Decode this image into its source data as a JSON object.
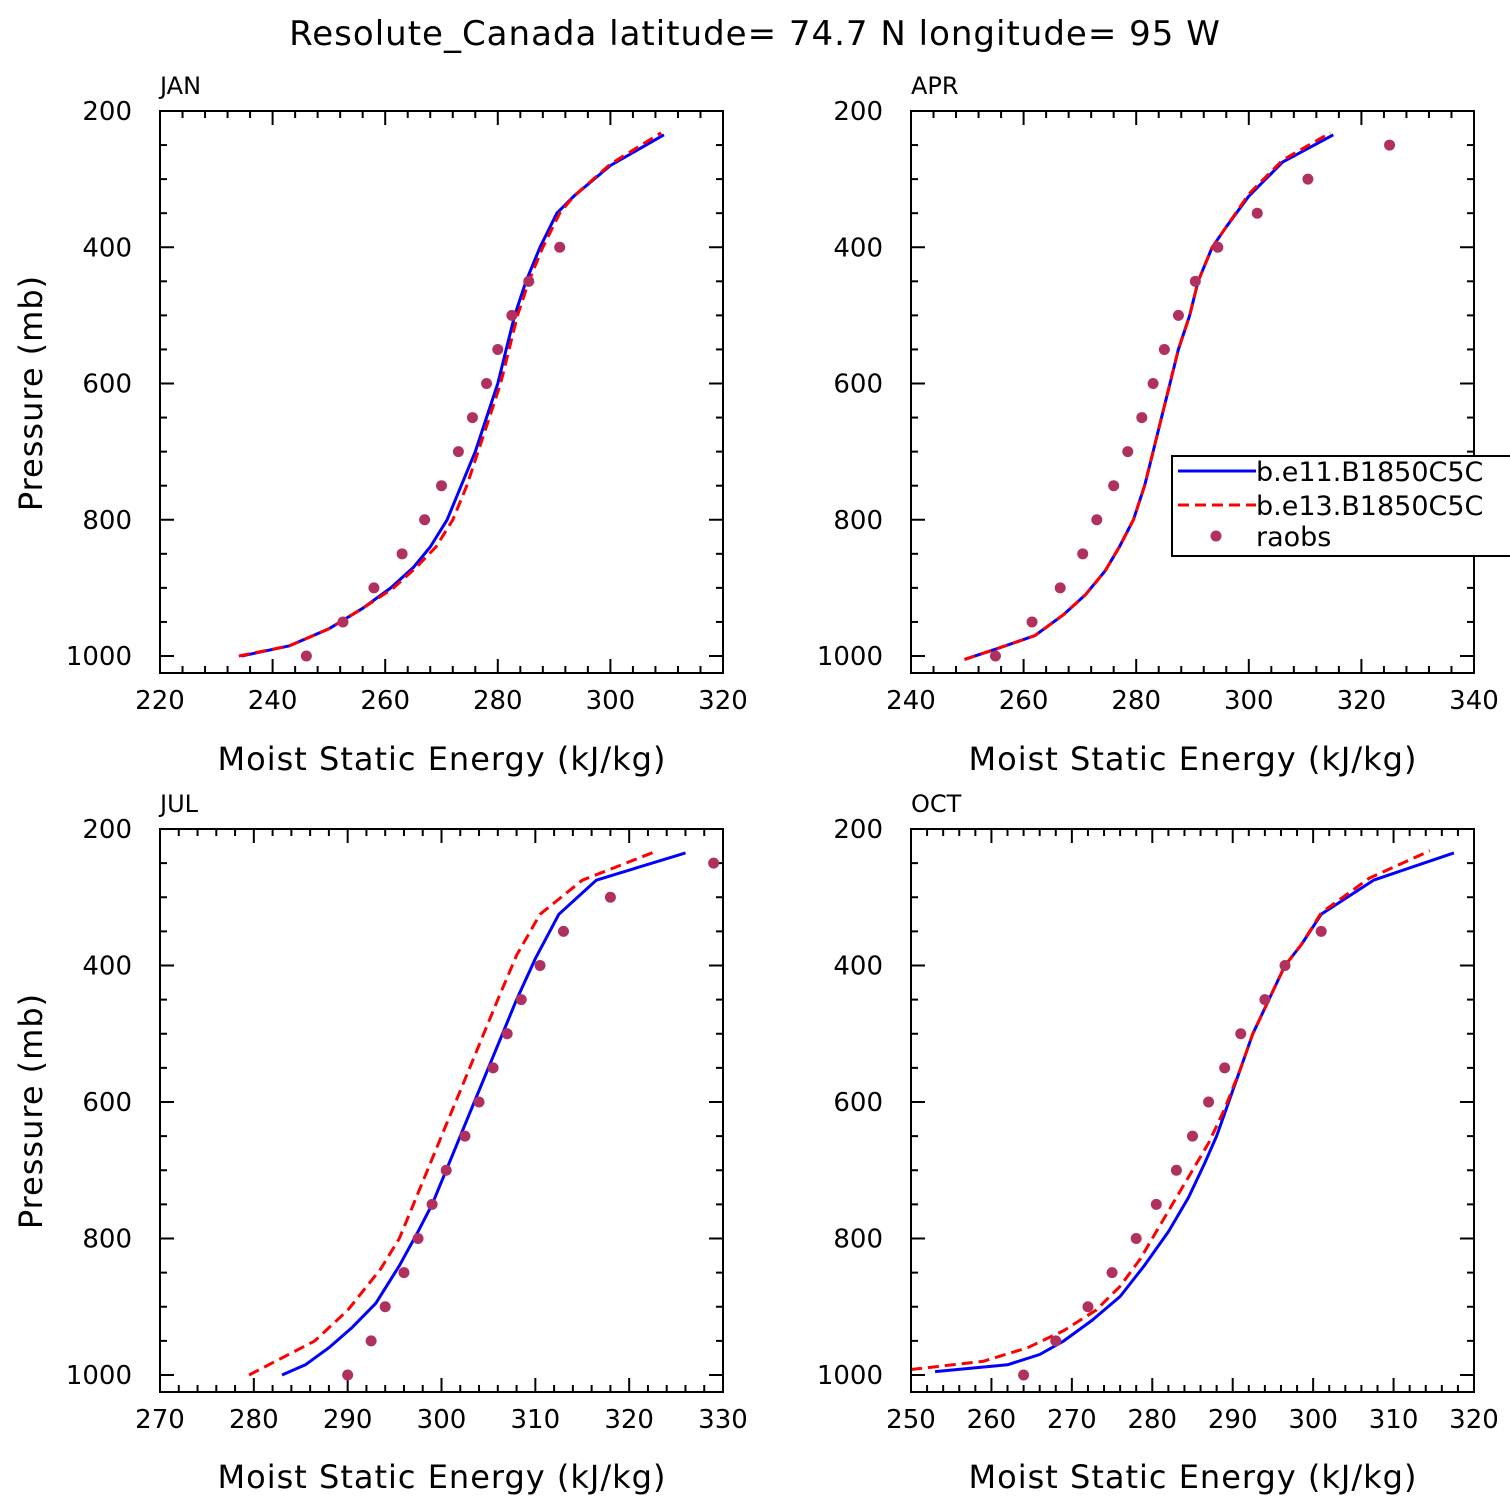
{
  "title": "Resolute_Canada  latitude= 74.7 N longitude= 95 W",
  "colors": {
    "blue": "#0000ff",
    "red": "#ff0000",
    "obs": "#b03060"
  },
  "legend": {
    "entries": [
      "b.e11.B1850C5C",
      "b.e13.B1850C5C",
      "raobs"
    ]
  },
  "chart_data": [
    {
      "type": "line",
      "title": "JAN",
      "xlabel": "Moist Static Energy (kJ/kg)",
      "ylabel": "Pressure (mb)",
      "xlim": [
        220,
        320
      ],
      "ylim": [
        200,
        1025
      ],
      "y_inverted": true,
      "xticks": [
        220,
        240,
        260,
        280,
        300,
        320
      ],
      "yticks": [
        200,
        400,
        600,
        800,
        1000
      ],
      "series": [
        {
          "name": "b.e11.B1850C5C",
          "style": "solid",
          "color": "blue",
          "points": [
            [
              234.5,
              1000
            ],
            [
              243,
              985
            ],
            [
              250,
              960
            ],
            [
              256,
              930
            ],
            [
              261,
              900
            ],
            [
              265,
              870
            ],
            [
              268,
              840
            ],
            [
              271,
              800
            ],
            [
              273.5,
              750
            ],
            [
              276,
              700
            ],
            [
              278,
              650
            ],
            [
              280,
              600
            ],
            [
              281.5,
              550
            ],
            [
              283,
              500
            ],
            [
              285,
              450
            ],
            [
              287.5,
              400
            ],
            [
              290.5,
              350
            ],
            [
              293.5,
              325
            ],
            [
              300,
              280
            ],
            [
              309.5,
              235
            ]
          ]
        },
        {
          "name": "b.e13.B1850C5C",
          "style": "dashed",
          "color": "red",
          "points": [
            [
              234,
              1000
            ],
            [
              243,
              985
            ],
            [
              250,
              960
            ],
            [
              256,
              930
            ],
            [
              261.5,
              900
            ],
            [
              265.5,
              870
            ],
            [
              269,
              840
            ],
            [
              272,
              800
            ],
            [
              274.5,
              750
            ],
            [
              276.5,
              700
            ],
            [
              278.5,
              650
            ],
            [
              280.5,
              600
            ],
            [
              282,
              550
            ],
            [
              283.5,
              500
            ],
            [
              285.5,
              450
            ],
            [
              288,
              400
            ],
            [
              291,
              350
            ],
            [
              293.5,
              325
            ],
            [
              300,
              278
            ],
            [
              309,
              232
            ]
          ]
        },
        {
          "name": "raobs",
          "style": "dots",
          "color": "obs",
          "points": [
            [
              246,
              1000
            ],
            [
              252.5,
              950
            ],
            [
              258,
              900
            ],
            [
              263,
              850
            ],
            [
              267,
              800
            ],
            [
              270,
              750
            ],
            [
              273,
              700
            ],
            [
              275.5,
              650
            ],
            [
              278,
              600
            ],
            [
              280,
              550
            ],
            [
              282.5,
              500
            ],
            [
              285.5,
              450
            ],
            [
              291,
              400
            ]
          ]
        }
      ]
    },
    {
      "type": "line",
      "title": "APR",
      "xlabel": "Moist Static Energy (kJ/kg)",
      "ylabel": "",
      "xlim": [
        240,
        340
      ],
      "ylim": [
        200,
        1025
      ],
      "y_inverted": true,
      "xticks": [
        240,
        260,
        280,
        300,
        320,
        340
      ],
      "yticks": [
        200,
        400,
        600,
        800,
        1000
      ],
      "series": [
        {
          "name": "b.e11.B1850C5C",
          "style": "solid",
          "color": "blue",
          "points": [
            [
              249.5,
              1005
            ],
            [
              255,
              990
            ],
            [
              262,
              970
            ],
            [
              267,
              940
            ],
            [
              271,
              910
            ],
            [
              274.5,
              875
            ],
            [
              277,
              840
            ],
            [
              279.5,
              800
            ],
            [
              281.5,
              750
            ],
            [
              283,
              700
            ],
            [
              284.5,
              650
            ],
            [
              286,
              600
            ],
            [
              287.5,
              550
            ],
            [
              289.5,
              500
            ],
            [
              291,
              450
            ],
            [
              293.5,
              400
            ],
            [
              296,
              370
            ],
            [
              300,
              325
            ],
            [
              306,
              275
            ],
            [
              315,
              235
            ]
          ]
        },
        {
          "name": "b.e13.B1850C5C",
          "style": "dashed",
          "color": "red",
          "points": [
            [
              249.5,
              1005
            ],
            [
              255,
              990
            ],
            [
              262,
              970
            ],
            [
              267,
              940
            ],
            [
              271,
              910
            ],
            [
              274.5,
              875
            ],
            [
              277,
              840
            ],
            [
              279.5,
              800
            ],
            [
              281.5,
              750
            ],
            [
              283,
              700
            ],
            [
              284.5,
              650
            ],
            [
              286,
              600
            ],
            [
              287.5,
              550
            ],
            [
              289.5,
              500
            ],
            [
              291,
              450
            ],
            [
              293.5,
              400
            ],
            [
              296,
              370
            ],
            [
              300,
              322
            ],
            [
              306,
              272
            ],
            [
              314.5,
              232
            ]
          ]
        },
        {
          "name": "raobs",
          "style": "dots",
          "color": "obs",
          "points": [
            [
              255,
              1000
            ],
            [
              261.5,
              950
            ],
            [
              266.5,
              900
            ],
            [
              270.5,
              850
            ],
            [
              273,
              800
            ],
            [
              276,
              750
            ],
            [
              278.5,
              700
            ],
            [
              281,
              650
            ],
            [
              283,
              600
            ],
            [
              285,
              550
            ],
            [
              287.5,
              500
            ],
            [
              290.5,
              450
            ],
            [
              294.5,
              400
            ],
            [
              301.5,
              350
            ],
            [
              310.5,
              300
            ],
            [
              325,
              250
            ]
          ]
        }
      ]
    },
    {
      "type": "line",
      "title": "JUL",
      "xlabel": "Moist Static Energy (kJ/kg)",
      "ylabel": "Pressure (mb)",
      "xlim": [
        270,
        330
      ],
      "ylim": [
        200,
        1025
      ],
      "y_inverted": true,
      "xticks": [
        270,
        280,
        290,
        300,
        310,
        320,
        330
      ],
      "yticks": [
        200,
        400,
        600,
        800,
        1000
      ],
      "series": [
        {
          "name": "b.e11.B1850C5C",
          "style": "solid",
          "color": "blue",
          "points": [
            [
              283,
              1000
            ],
            [
              285.5,
              985
            ],
            [
              288,
              960
            ],
            [
              290.5,
              930
            ],
            [
              293,
              895
            ],
            [
              295.5,
              840
            ],
            [
              297.5,
              790
            ],
            [
              299,
              750
            ],
            [
              300.5,
              700
            ],
            [
              302,
              650
            ],
            [
              303.5,
              600
            ],
            [
              305,
              550
            ],
            [
              306.5,
              500
            ],
            [
              308,
              450
            ],
            [
              310,
              390
            ],
            [
              312.5,
              325
            ],
            [
              316.5,
              275
            ],
            [
              326,
              235
            ]
          ]
        },
        {
          "name": "b.e13.B1850C5C",
          "style": "dashed",
          "color": "red",
          "points": [
            [
              279.5,
              1000
            ],
            [
              283,
              975
            ],
            [
              286.5,
              950
            ],
            [
              290,
              905
            ],
            [
              293.5,
              845
            ],
            [
              295.5,
              800
            ],
            [
              297,
              750
            ],
            [
              298.5,
              700
            ],
            [
              300,
              650
            ],
            [
              301.5,
              600
            ],
            [
              303,
              550
            ],
            [
              304.5,
              500
            ],
            [
              306,
              450
            ],
            [
              308,
              385
            ],
            [
              310.5,
              325
            ],
            [
              315,
              275
            ],
            [
              323,
              232
            ]
          ]
        },
        {
          "name": "raobs",
          "style": "dots",
          "color": "obs",
          "points": [
            [
              290,
              1000
            ],
            [
              292.5,
              950
            ],
            [
              294,
              900
            ],
            [
              296,
              850
            ],
            [
              297.5,
              800
            ],
            [
              299,
              750
            ],
            [
              300.5,
              700
            ],
            [
              302.5,
              650
            ],
            [
              304,
              600
            ],
            [
              305.5,
              550
            ],
            [
              307,
              500
            ],
            [
              308.5,
              450
            ],
            [
              310.5,
              400
            ],
            [
              313,
              350
            ],
            [
              318,
              300
            ],
            [
              329,
              250
            ]
          ]
        }
      ]
    },
    {
      "type": "line",
      "title": "OCT",
      "xlabel": "Moist Static Energy (kJ/kg)",
      "ylabel": "",
      "xlim": [
        250,
        320
      ],
      "ylim": [
        200,
        1025
      ],
      "y_inverted": true,
      "xticks": [
        250,
        260,
        270,
        280,
        290,
        300,
        310,
        320
      ],
      "yticks": [
        200,
        400,
        600,
        800,
        1000
      ],
      "series": [
        {
          "name": "b.e11.B1850C5C",
          "style": "solid",
          "color": "blue",
          "points": [
            [
              253,
              995
            ],
            [
              262,
              985
            ],
            [
              266,
              970
            ],
            [
              269,
              950
            ],
            [
              272.5,
              920
            ],
            [
              276,
              885
            ],
            [
              279,
              840
            ],
            [
              282,
              790
            ],
            [
              284.5,
              740
            ],
            [
              286.5,
              690
            ],
            [
              288,
              650
            ],
            [
              289.5,
              600
            ],
            [
              291,
              550
            ],
            [
              292.5,
              500
            ],
            [
              294.5,
              450
            ],
            [
              296.5,
              400
            ],
            [
              298.5,
              370
            ],
            [
              301,
              325
            ],
            [
              307.5,
              275
            ],
            [
              317.5,
              235
            ]
          ]
        },
        {
          "name": "b.e13.B1850C5C",
          "style": "dashed",
          "color": "red",
          "points": [
            [
              250,
              992
            ],
            [
              259,
              980
            ],
            [
              264.5,
              960
            ],
            [
              269,
              935
            ],
            [
              273,
              905
            ],
            [
              276,
              870
            ],
            [
              278.5,
              830
            ],
            [
              281,
              780
            ],
            [
              283,
              740
            ],
            [
              285,
              700
            ],
            [
              287,
              660
            ],
            [
              289,
              610
            ],
            [
              291,
              550
            ],
            [
              292.5,
              500
            ],
            [
              294.5,
              450
            ],
            [
              296.5,
              400
            ],
            [
              298.5,
              370
            ],
            [
              301,
              323
            ],
            [
              307,
              272
            ],
            [
              314.5,
              232
            ]
          ]
        },
        {
          "name": "raobs",
          "style": "dots",
          "color": "obs",
          "points": [
            [
              264,
              1000
            ],
            [
              268,
              950
            ],
            [
              272,
              900
            ],
            [
              275,
              850
            ],
            [
              278,
              800
            ],
            [
              280.5,
              750
            ],
            [
              283,
              700
            ],
            [
              285,
              650
            ],
            [
              287,
              600
            ],
            [
              289,
              550
            ],
            [
              291,
              500
            ],
            [
              294,
              450
            ],
            [
              296.5,
              400
            ],
            [
              301,
              350
            ]
          ]
        }
      ]
    }
  ]
}
